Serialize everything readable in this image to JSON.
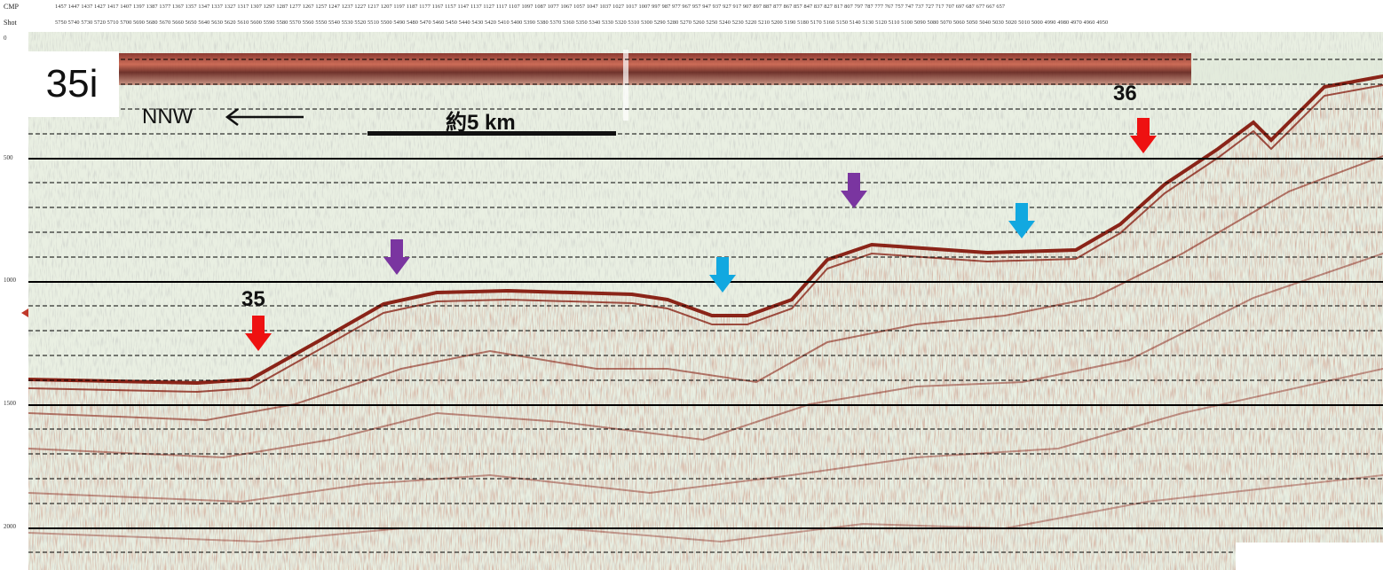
{
  "header": {
    "cmp_label": "CMP",
    "shot_label": "Shot",
    "cmp_values": "1457 1447 1437 1427 1417 1407 1397 1387 1377 1367 1357 1347 1337 1327 1317 1307 1297 1287 1277 1267 1257 1247 1237 1227 1217 1207 1197 1187 1177 1167 1157 1147 1137 1127 1117 1107 1097 1087 1077 1067 1057 1047 1037 1027 1017 1007 997 987 977 967 957 947 937 927 917 907 897 887 877 867 857 847 837 827 817 807 797 787 777 767 757 747 737 727 717 707 697 687 677 667 657",
    "shot_values": "5750 5740 5730 5720 5710 5700 5690 5680 5670 5660 5650 5640 5630 5620 5610 5600 5590 5580 5570 5560 5550 5540 5530 5520 5510 5500 5490 5480 5470 5460 5450 5440 5430 5420 5410 5400 5390 5380 5370 5360 5350 5340 5330 5320 5310 5300 5290 5280 5270 5260 5250 5240 5230 5220 5210 5200 5190 5180 5170 5160 5150 5140 5130 5120 5110 5100 5090 5080 5070 5060 5050 5040 5030 5020 5010 5000 4990 4980 4970 4960 4950"
  },
  "y_axis": {
    "ticks": [
      "0",
      "500",
      "1000",
      "1500",
      "2000"
    ]
  },
  "panel_tag": "35i",
  "direction_label": "NNW",
  "scale_label": "約5 km",
  "horizon_labels": [
    "35",
    "36"
  ],
  "colors": {
    "background": "#e9efe2",
    "reflector": "#8a2418",
    "water_band": "#b03828",
    "red_arrow": "#ee1111",
    "purple_arrow": "#7a35a0",
    "blue_arrow": "#12a8e0"
  },
  "markers": [
    {
      "kind": "red",
      "label": "35"
    },
    {
      "kind": "purple"
    },
    {
      "kind": "blue"
    },
    {
      "kind": "purple"
    },
    {
      "kind": "blue"
    },
    {
      "kind": "red",
      "label": "36"
    }
  ]
}
